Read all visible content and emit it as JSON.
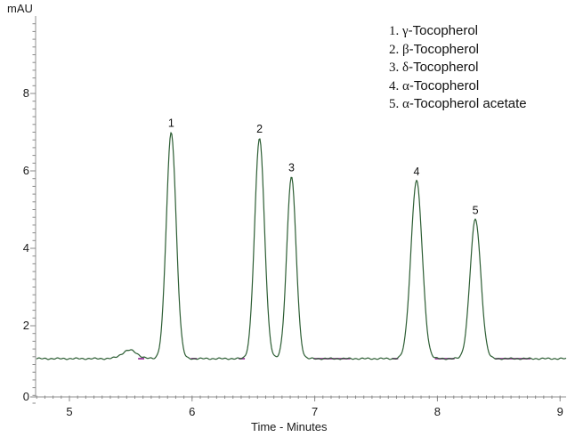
{
  "labels": {
    "y_unit": "mAU",
    "x_title": "Time - Minutes"
  },
  "chart_data": {
    "type": "line",
    "title": "",
    "xlabel": "Time - Minutes",
    "ylabel": "mAU",
    "xlim": [
      4.72,
      9.05
    ],
    "ylim": [
      0,
      9.95
    ],
    "x_ticks": [
      5,
      6,
      7,
      8,
      9
    ],
    "y_ticks": [
      0,
      2,
      4,
      6,
      8
    ],
    "x_minor_step": 0.066667,
    "y_minor_step": 0.2,
    "grid": false,
    "legend_position": "top-right",
    "baseline_mAU": 1.15,
    "noise_amplitude_mAU": 0.02,
    "colors": {
      "trace": "#2d5e34",
      "baseline_marker": "#993399",
      "axis": "#8a8a8a",
      "axis_light": "#b5b5b5",
      "text": "#1a1a1a"
    },
    "peaks": [
      {
        "label": "1",
        "compound": "γ-Tocopherol",
        "time_min": 5.83,
        "apex_mAU": 7.0,
        "sigma_min": 0.04
      },
      {
        "label": "2",
        "compound": "β-Tocopherol",
        "time_min": 6.55,
        "apex_mAU": 6.85,
        "sigma_min": 0.04
      },
      {
        "label": "3",
        "compound": "δ-Tocopherol",
        "time_min": 6.81,
        "apex_mAU": 5.85,
        "sigma_min": 0.038
      },
      {
        "label": "4",
        "compound": "α-Tocopherol",
        "time_min": 7.83,
        "apex_mAU": 5.75,
        "sigma_min": 0.046
      },
      {
        "label": "5",
        "compound": "α-Tocopherol acetate",
        "time_min": 8.31,
        "apex_mAU": 4.75,
        "sigma_min": 0.044
      }
    ],
    "minor_disturbance": {
      "time_min": 5.49,
      "apex_mAU": 1.37,
      "sigma_min": 0.06
    },
    "baseline_marker_segments_min": [
      [
        5.56,
        5.61
      ],
      [
        5.99,
        6.04
      ],
      [
        6.38,
        6.43
      ],
      [
        6.99,
        7.29
      ],
      [
        7.63,
        7.68
      ],
      [
        7.98,
        8.14
      ],
      [
        8.47,
        8.76
      ]
    ]
  },
  "legend": {
    "items": [
      {
        "num": "1.",
        "greek": "γ",
        "rest": "-Tocopherol"
      },
      {
        "num": "2.",
        "greek": "β",
        "rest": "-Tocopherol"
      },
      {
        "num": "3.",
        "greek": "δ",
        "rest": "-Tocopherol"
      },
      {
        "num": "4.",
        "greek": "α",
        "rest": "-Tocopherol"
      },
      {
        "num": "5.",
        "greek": "α",
        "rest": "-Tocopherol acetate"
      }
    ]
  }
}
